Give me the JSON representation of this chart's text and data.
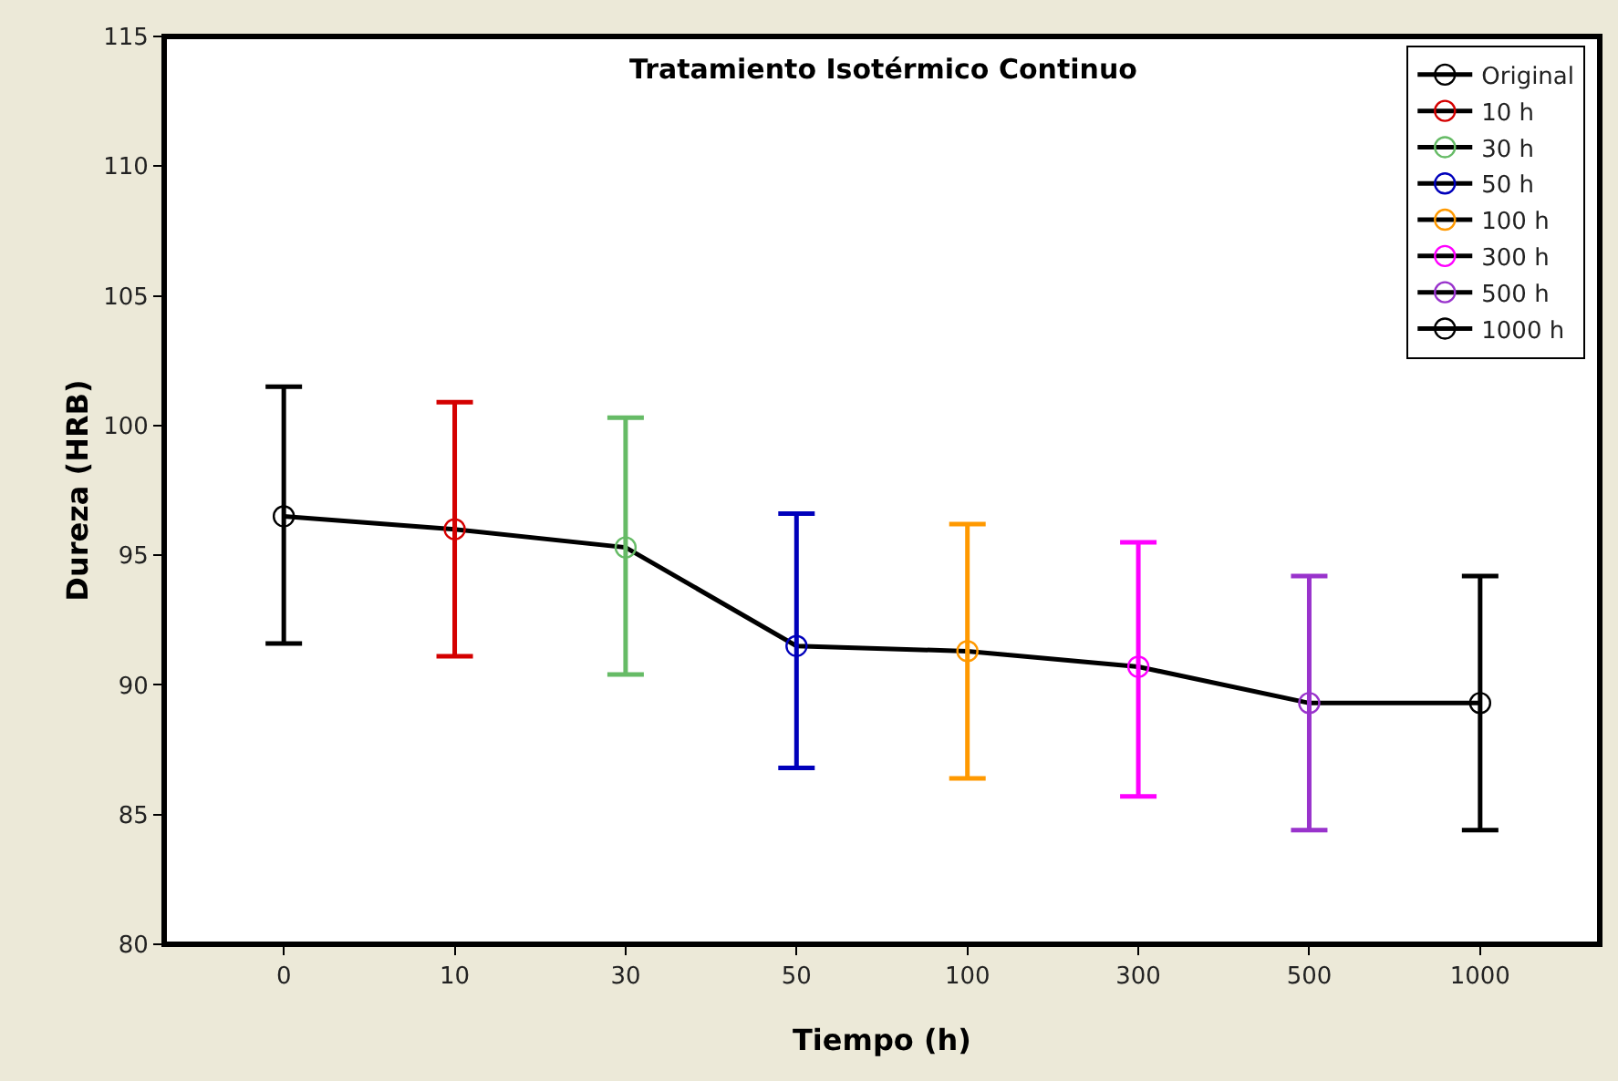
{
  "chart_data": {
    "type": "line",
    "title": "Tratamiento Isotérmico Continuo",
    "xlabel": "Tiempo (h)",
    "ylabel": "Dureza (HRB)",
    "categories": [
      "0",
      "10",
      "30",
      "50",
      "100",
      "300",
      "500",
      "1000"
    ],
    "ylim": [
      80,
      115
    ],
    "yticks": [
      80,
      85,
      90,
      95,
      100,
      105,
      110,
      115
    ],
    "grid": false,
    "legend": "top right",
    "marker": "circle",
    "series": [
      {
        "color": "#000000",
        "marker": "none",
        "values": [
          96.5,
          96.0,
          95.3,
          91.5,
          91.3,
          90.7,
          89.3,
          89.3
        ]
      },
      {
        "name": "Original",
        "color": "#000000",
        "values": [
          96.5,
          null,
          null,
          null,
          null,
          null,
          null,
          null
        ],
        "errors": [
          [
            91.6,
            101.5
          ],
          null,
          null,
          null,
          null,
          null,
          null,
          null
        ]
      },
      {
        "name": "10 h",
        "color": "#d40000",
        "values": [
          null,
          96.0,
          null,
          null,
          null,
          null,
          null,
          null
        ],
        "errors": [
          null,
          [
            91.1,
            100.9
          ],
          null,
          null,
          null,
          null,
          null,
          null
        ]
      },
      {
        "name": "30 h",
        "color": "#66bb66",
        "values": [
          null,
          null,
          95.3,
          null,
          null,
          null,
          null,
          null
        ],
        "errors": [
          null,
          null,
          [
            90.4,
            100.3
          ],
          null,
          null,
          null,
          null,
          null
        ]
      },
      {
        "name": "50 h",
        "color": "#0000bb",
        "values": [
          null,
          null,
          null,
          91.5,
          null,
          null,
          null,
          null
        ],
        "errors": [
          null,
          null,
          null,
          [
            86.8,
            96.6
          ],
          null,
          null,
          null,
          null
        ]
      },
      {
        "name": "100 h",
        "color": "#ff9900",
        "values": [
          null,
          null,
          null,
          null,
          91.3,
          null,
          null,
          null
        ],
        "errors": [
          null,
          null,
          null,
          null,
          [
            86.4,
            96.2
          ],
          null,
          null,
          null
        ]
      },
      {
        "name": "300 h",
        "color": "#ff00ff",
        "values": [
          null,
          null,
          null,
          null,
          null,
          90.7,
          null,
          null
        ],
        "errors": [
          null,
          null,
          null,
          null,
          null,
          [
            85.7,
            95.5
          ],
          null,
          null
        ]
      },
      {
        "name": "500 h",
        "color": "#9933cc",
        "values": [
          null,
          null,
          null,
          null,
          null,
          null,
          89.3,
          null
        ],
        "errors": [
          null,
          null,
          null,
          null,
          null,
          null,
          [
            84.4,
            94.2
          ],
          null
        ]
      },
      {
        "name": "1000 h",
        "color": "#000000",
        "values": [
          null,
          null,
          null,
          null,
          null,
          null,
          null,
          89.3
        ],
        "errors": [
          null,
          null,
          null,
          null,
          null,
          null,
          null,
          [
            84.4,
            94.2
          ]
        ]
      }
    ]
  }
}
